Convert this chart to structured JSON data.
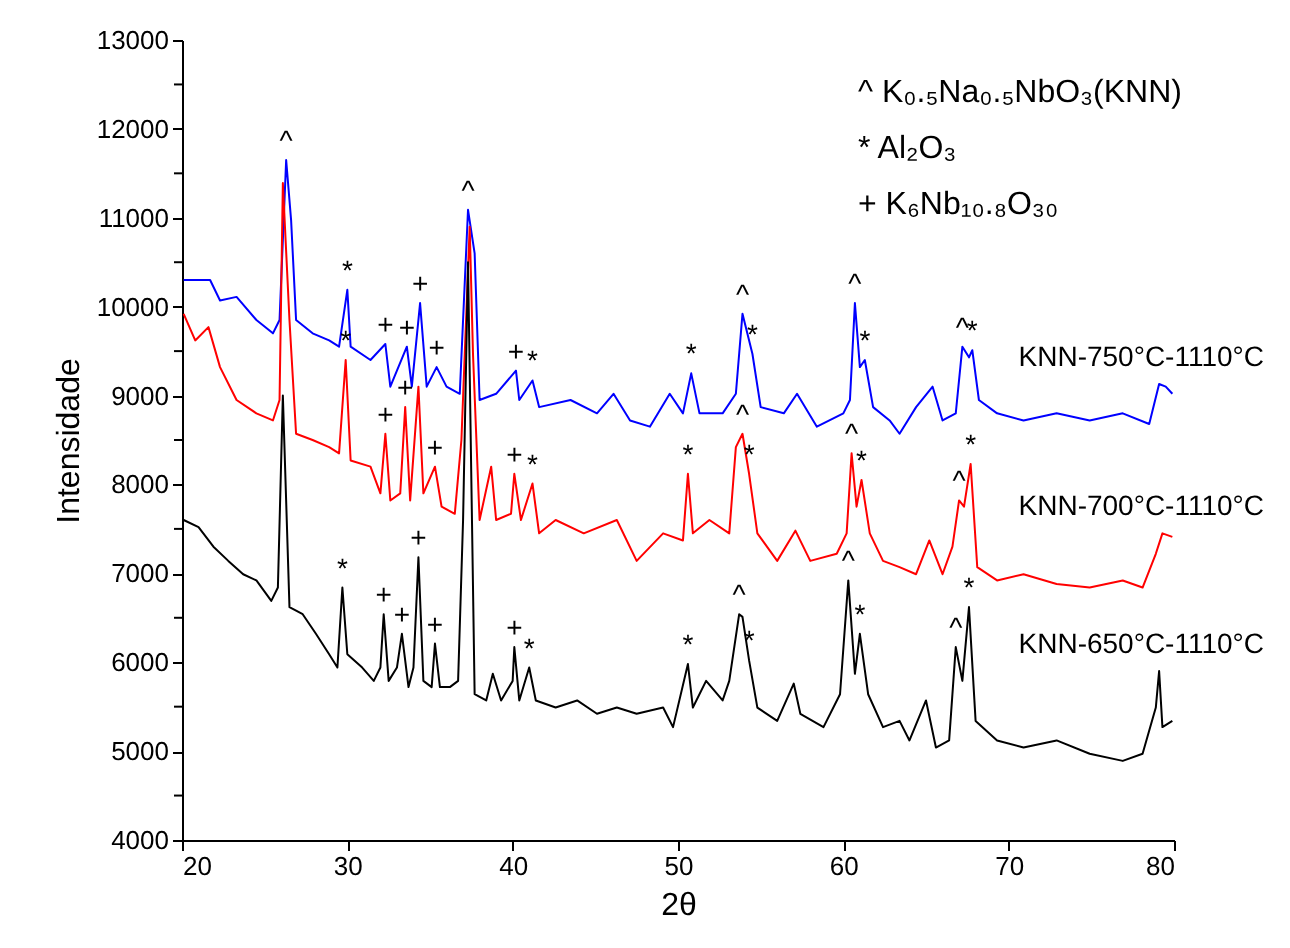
{
  "chart_data": {
    "type": "line",
    "xlabel": "2θ",
    "ylabel": "Intensidade",
    "xlim": [
      20,
      80
    ],
    "xticks": [
      20,
      30,
      40,
      50,
      60,
      70,
      80
    ],
    "ylim": [
      4000,
      13000
    ],
    "yticks": [
      4000,
      {
        "value": 4500,
        "label": null
      },
      5000,
      {
        "value": 5500,
        "label": null
      },
      6000,
      {
        "value": 6500,
        "label": null
      },
      7000,
      {
        "value": 7500,
        "label": null
      },
      8000,
      {
        "value": 8500,
        "label": null
      },
      9000,
      {
        "value": 9500,
        "label": null
      },
      10000,
      {
        "value": 10500,
        "label": null
      },
      11000,
      {
        "value": 11500,
        "label": null
      },
      12000,
      {
        "value": 12500,
        "label": null
      },
      13000
    ],
    "grid": false,
    "legend": "right",
    "line_style": "solid",
    "marker": "none",
    "series": [
      {
        "name": "KNN-750°C-1110°C",
        "color": "#0000ff",
        "x": [
          20.1,
          21.7,
          22.3,
          23.3,
          24.5,
          25.5,
          25.9,
          26.3,
          26.6,
          26.9,
          27.9,
          28.9,
          29.5,
          30.0,
          30.2,
          31.4,
          32.3,
          32.6,
          33.6,
          33.9,
          34.4,
          34.8,
          35.4,
          36.0,
          36.8,
          37.3,
          37.7,
          38.0,
          39.0,
          40.2,
          40.4,
          41.2,
          41.6,
          43.5,
          45.1,
          46.1,
          47.1,
          48.3,
          49.5,
          50.3,
          50.8,
          51.3,
          52.7,
          53.5,
          53.9,
          54.5,
          55.0,
          56.4,
          57.2,
          58.4,
          60.0,
          60.4,
          60.7,
          61.0,
          61.3,
          61.8,
          62.8,
          63.4,
          64.4,
          65.4,
          66.0,
          66.8,
          67.2,
          67.6,
          67.8,
          68.2,
          69.3,
          70.9,
          72.9,
          74.9,
          76.9,
          78.5,
          79.1,
          79.5,
          79.9
        ],
        "values": [
          10300,
          10300,
          10070,
          10110,
          9850,
          9700,
          9850,
          11650,
          10970,
          9850,
          9700,
          9620,
          9550,
          10190,
          9550,
          9400,
          9580,
          9100,
          9550,
          9100,
          10040,
          9100,
          9320,
          9100,
          9020,
          11090,
          10600,
          8950,
          9020,
          9280,
          8950,
          9170,
          8870,
          8950,
          8800,
          9020,
          8720,
          8650,
          9020,
          8800,
          9250,
          8800,
          8800,
          9020,
          9920,
          9470,
          8870,
          8800,
          9020,
          8650,
          8800,
          8950,
          10040,
          9320,
          9400,
          8870,
          8720,
          8570,
          8870,
          9100,
          8720,
          8800,
          9550,
          9430,
          9510,
          8950,
          8800,
          8720,
          8800,
          8720,
          8800,
          8680,
          9130,
          9100,
          9020
        ]
      },
      {
        "name": "KNN-700°C-1110°C",
        "color": "#ff0000",
        "x": [
          20.1,
          20.8,
          21.6,
          22.3,
          23.3,
          24.5,
          25.5,
          25.9,
          26.1,
          26.5,
          26.9,
          27.9,
          28.9,
          29.5,
          29.9,
          30.2,
          31.4,
          32.0,
          32.3,
          32.6,
          33.2,
          33.5,
          33.8,
          34.3,
          34.6,
          35.3,
          35.7,
          36.5,
          36.9,
          37.4,
          37.6,
          38.0,
          38.7,
          39.0,
          39.9,
          40.1,
          40.5,
          41.2,
          41.6,
          42.6,
          44.3,
          46.3,
          47.5,
          49.1,
          50.3,
          50.6,
          50.9,
          51.9,
          53.1,
          53.5,
          53.9,
          54.3,
          54.8,
          56.0,
          57.1,
          58.0,
          59.6,
          60.2,
          60.5,
          60.8,
          61.1,
          61.6,
          62.4,
          63.4,
          64.4,
          65.2,
          66.0,
          66.6,
          67.0,
          67.3,
          67.7,
          68.1,
          69.3,
          70.9,
          72.9,
          74.9,
          76.9,
          78.1,
          78.9,
          79.3,
          79.9
        ],
        "values": [
          9920,
          9620,
          9770,
          9320,
          8950,
          8800,
          8720,
          8950,
          11390,
          9850,
          8570,
          8500,
          8420,
          8350,
          9400,
          8270,
          8200,
          7900,
          8570,
          7820,
          7900,
          8870,
          7820,
          9100,
          7900,
          8200,
          7750,
          7670,
          8500,
          10900,
          9470,
          7600,
          8200,
          7600,
          7670,
          8120,
          7600,
          8010,
          7450,
          7600,
          7450,
          7600,
          7140,
          7450,
          7370,
          8120,
          7450,
          7600,
          7450,
          8420,
          8570,
          8120,
          7450,
          7140,
          7480,
          7140,
          7220,
          7450,
          8350,
          7750,
          8050,
          7450,
          7140,
          7070,
          6990,
          7370,
          6990,
          7300,
          7820,
          7750,
          8230,
          7070,
          6920,
          6990,
          6880,
          6840,
          6920,
          6840,
          7220,
          7450,
          7410
        ]
      },
      {
        "name": "KNN-650°C-1110°C",
        "color": "#000000",
        "x": [
          20.1,
          21.0,
          21.9,
          22.8,
          23.7,
          24.5,
          25.4,
          25.8,
          26.1,
          26.5,
          27.3,
          28.1,
          28.9,
          29.4,
          29.7,
          30.0,
          30.9,
          31.6,
          32.0,
          32.2,
          32.5,
          33.0,
          33.3,
          33.7,
          34.0,
          34.3,
          34.6,
          35.1,
          35.3,
          35.6,
          36.2,
          36.7,
          37.0,
          37.3,
          37.7,
          38.4,
          38.8,
          39.3,
          40.0,
          40.1,
          40.4,
          41.0,
          41.4,
          42.6,
          43.9,
          45.1,
          46.3,
          47.5,
          49.1,
          49.7,
          50.6,
          50.9,
          51.7,
          52.7,
          53.1,
          53.7,
          53.9,
          54.3,
          54.8,
          56.0,
          57.0,
          57.4,
          58.8,
          59.8,
          60.3,
          60.7,
          61.0,
          61.5,
          62.4,
          63.4,
          64.0,
          65.0,
          65.6,
          66.4,
          66.8,
          67.2,
          67.6,
          68.0,
          69.3,
          70.9,
          72.9,
          74.9,
          76.9,
          78.1,
          78.9,
          79.1,
          79.3,
          79.9
        ],
        "values": [
          7600,
          7520,
          7300,
          7140,
          6990,
          6920,
          6690,
          6840,
          9000,
          6620,
          6540,
          6320,
          6090,
          5940,
          6840,
          6090,
          5940,
          5790,
          5940,
          6540,
          5790,
          5940,
          6320,
          5720,
          5940,
          7180,
          5790,
          5720,
          6210,
          5720,
          5720,
          5790,
          7600,
          10500,
          5640,
          5570,
          5870,
          5570,
          5790,
          6170,
          5570,
          5940,
          5570,
          5490,
          5570,
          5420,
          5490,
          5420,
          5490,
          5270,
          5980,
          5490,
          5790,
          5570,
          5790,
          6540,
          6510,
          6020,
          5490,
          5340,
          5760,
          5420,
          5270,
          5640,
          6920,
          5870,
          6320,
          5640,
          5270,
          5340,
          5120,
          5570,
          5040,
          5120,
          6170,
          5790,
          6620,
          5340,
          5120,
          5040,
          5120,
          4970,
          4890,
          4970,
          5490,
          5900,
          5270,
          5340
        ]
      }
    ],
    "annotations": [
      "^  K₀.₅Na₀.₅NbO₃(KNN)",
      "* Al₂O₃",
      "+ K₆Nb₁₀.₈O₃₀",
      {
        "text": "^",
        "x": 26.3,
        "y": 11650
      },
      {
        "text": "*",
        "x": 30.0,
        "y": 10190
      },
      {
        "text": "+",
        "x": 34.4,
        "y": 10040
      },
      {
        "text": "+",
        "x": 32.3,
        "y": 9580
      },
      {
        "text": "+",
        "x": 33.6,
        "y": 9550
      },
      {
        "text": "+",
        "x": 35.4,
        "y": 9320
      },
      {
        "text": "^",
        "x": 37.3,
        "y": 11090
      },
      {
        "text": "+",
        "x": 40.2,
        "y": 9280
      },
      {
        "text": "*",
        "x": 41.2,
        "y": 9170
      },
      {
        "text": "*",
        "x": 29.9,
        "y": 9400
      },
      {
        "text": "+",
        "x": 32.3,
        "y": 8570
      },
      {
        "text": "+",
        "x": 33.5,
        "y": 8870
      },
      {
        "text": "+",
        "x": 35.3,
        "y": 8200
      },
      {
        "text": "+",
        "x": 40.1,
        "y": 8120
      },
      {
        "text": "*",
        "x": 41.2,
        "y": 8010
      },
      {
        "text": "*",
        "x": 29.7,
        "y": 6840
      },
      {
        "text": "+",
        "x": 32.2,
        "y": 6540
      },
      {
        "text": "+",
        "x": 33.3,
        "y": 6320
      },
      {
        "text": "+",
        "x": 34.3,
        "y": 7180
      },
      {
        "text": "+",
        "x": 35.3,
        "y": 6210
      },
      {
        "text": "+",
        "x": 40.1,
        "y": 6170
      },
      {
        "text": "*",
        "x": 41.0,
        "y": 5940
      },
      {
        "text": "*",
        "x": 50.8,
        "y": 9250
      },
      {
        "text": "^",
        "x": 53.9,
        "y": 9920
      },
      {
        "text": "*",
        "x": 54.5,
        "y": 9470
      },
      {
        "text": "^",
        "x": 60.7,
        "y": 10040
      },
      {
        "text": "*",
        "x": 61.3,
        "y": 9400
      },
      {
        "text": "*",
        "x": 50.6,
        "y": 8120
      },
      {
        "text": "^",
        "x": 53.9,
        "y": 8570
      },
      {
        "text": "*",
        "x": 54.3,
        "y": 8120
      },
      {
        "text": "^",
        "x": 60.5,
        "y": 8350
      },
      {
        "text": "*",
        "x": 61.1,
        "y": 8050
      },
      {
        "text": "*",
        "x": 50.6,
        "y": 5980
      },
      {
        "text": "^",
        "x": 53.7,
        "y": 6540
      },
      {
        "text": "*",
        "x": 54.3,
        "y": 6020
      },
      {
        "text": "^",
        "x": 60.3,
        "y": 6920
      },
      {
        "text": "*",
        "x": 61.0,
        "y": 6320
      },
      {
        "text": "^",
        "x": 67.2,
        "y": 9550
      },
      {
        "text": "*",
        "x": 67.8,
        "y": 9510
      },
      {
        "text": "^",
        "x": 67.0,
        "y": 7820
      },
      {
        "text": "*",
        "x": 67.7,
        "y": 8230
      },
      {
        "text": "^",
        "x": 66.8,
        "y": 6170
      },
      {
        "text": "*",
        "x": 67.6,
        "y": 6620
      }
    ]
  }
}
